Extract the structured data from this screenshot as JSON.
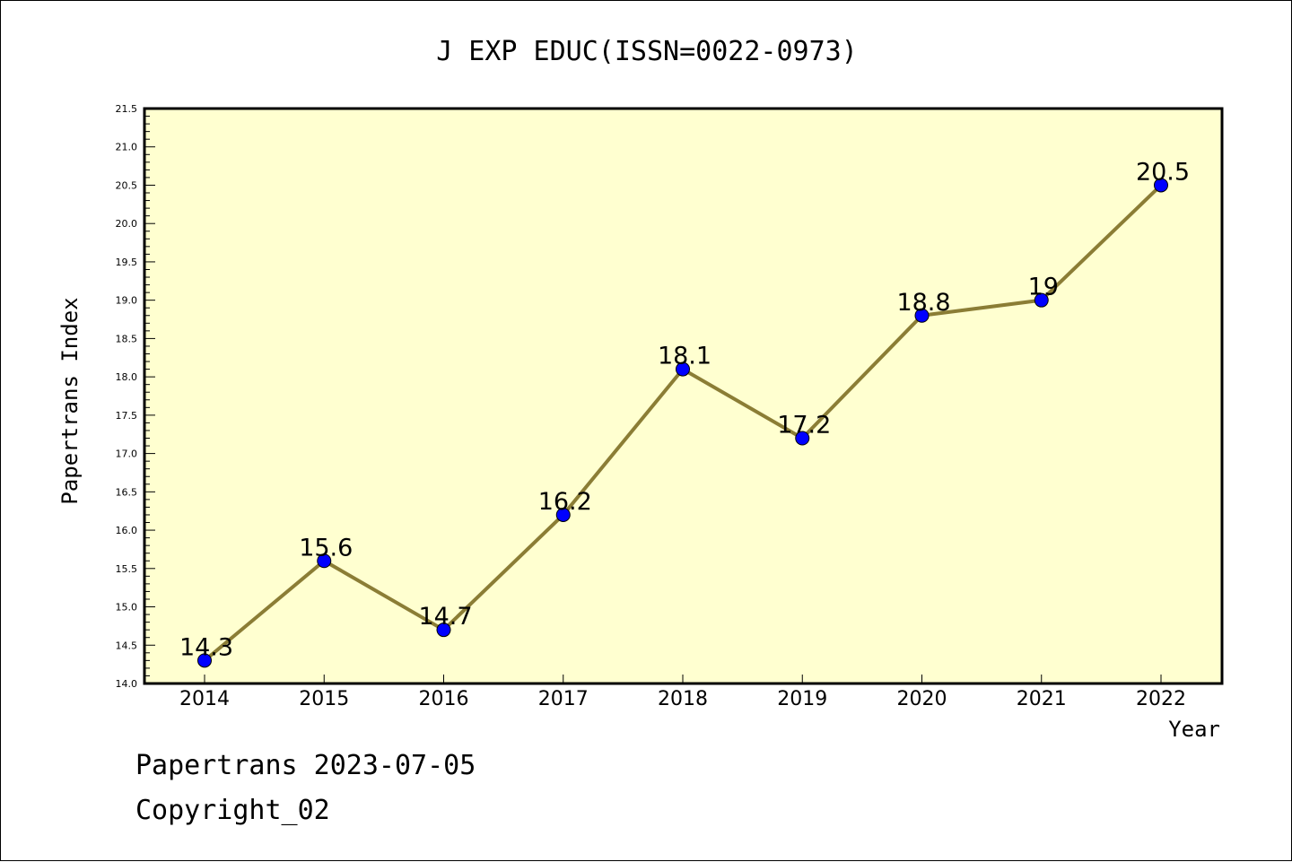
{
  "chart_data": {
    "type": "line",
    "title": "J EXP EDUC(ISSN=0022-0973)",
    "xlabel": "Year",
    "ylabel": "Papertrans Index",
    "categories": [
      "2014",
      "2015",
      "2016",
      "2017",
      "2018",
      "2019",
      "2020",
      "2021",
      "2022"
    ],
    "series": [
      {
        "values": [
          14.3,
          15.6,
          14.7,
          16.2,
          18.1,
          17.2,
          18.8,
          19,
          20.5
        ],
        "data_labels": [
          "14.3",
          "15.6",
          "14.7",
          "16.2",
          "18.1",
          "17.2",
          "18.8",
          "19",
          "20.5"
        ]
      }
    ],
    "ylim": [
      14.0,
      21.5
    ],
    "yticks": [
      "14.0",
      "14.5",
      "15.0",
      "15.5",
      "16.0",
      "16.5",
      "17.0",
      "17.5",
      "18.0",
      "18.5",
      "19.0",
      "19.5",
      "20.0",
      "20.5",
      "21.0",
      "21.5"
    ],
    "grid": false,
    "legend": "none",
    "colors": {
      "plot_background": "#ffffd0",
      "line": "#8b7d35",
      "marker": "#0000ff"
    }
  },
  "footer": {
    "line1": "Papertrans 2023-07-05",
    "line2": "Copyright_02"
  }
}
